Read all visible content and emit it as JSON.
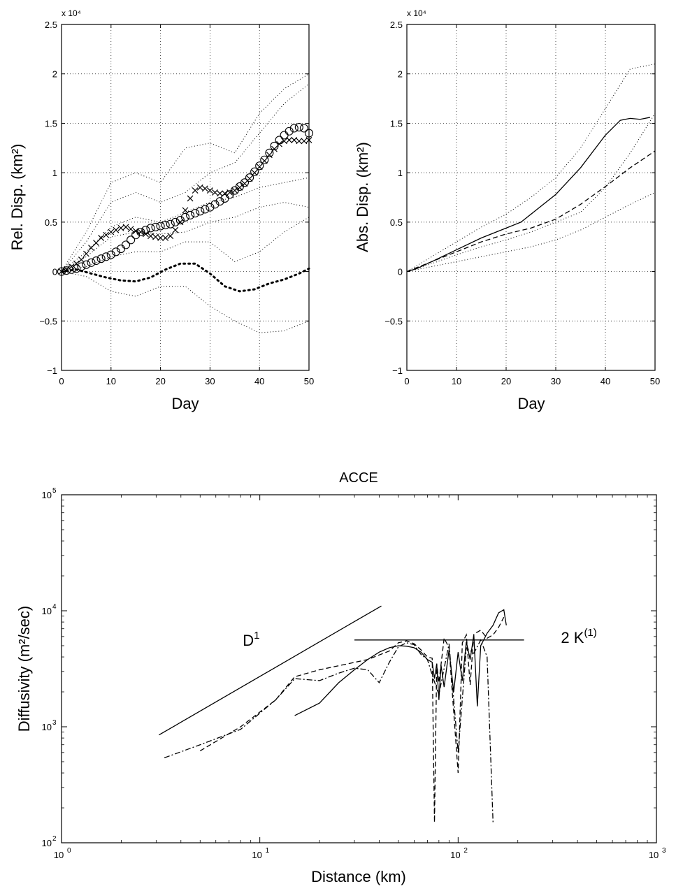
{
  "chart_data": [
    {
      "type": "line",
      "xlabel": "Day",
      "ylabel": "Rel. Disp. (km²)",
      "y_scale_label": "x 10⁴",
      "xlim": [
        0,
        50
      ],
      "ylim": [
        -1,
        2.5
      ],
      "x_ticks": [
        0,
        10,
        20,
        30,
        40,
        50
      ],
      "y_ticks": [
        -1,
        -0.5,
        0,
        0.5,
        1,
        1.5,
        2,
        2.5
      ],
      "y_tick_labels": [
        "−1",
        "−0.5",
        "0",
        "0.5",
        "1",
        "1.5",
        "2",
        "2.5"
      ],
      "grid": true,
      "series": [
        {
          "marker": "circle",
          "style": "circles",
          "x": [
            0,
            1,
            2,
            3,
            4,
            5,
            6,
            7,
            8,
            9,
            10,
            11,
            12,
            13,
            14,
            15,
            16,
            17,
            18,
            19,
            20,
            21,
            22,
            23,
            24,
            25,
            26,
            27,
            28,
            29,
            30,
            31,
            32,
            33,
            34,
            35,
            36,
            37,
            38,
            39,
            40,
            41,
            42,
            43,
            44,
            45,
            46,
            47,
            48,
            49,
            50
          ],
          "y": [
            0,
            0.01,
            0.02,
            0.03,
            0.05,
            0.07,
            0.09,
            0.11,
            0.13,
            0.15,
            0.17,
            0.2,
            0.23,
            0.27,
            0.32,
            0.37,
            0.4,
            0.42,
            0.44,
            0.45,
            0.46,
            0.47,
            0.48,
            0.5,
            0.52,
            0.55,
            0.57,
            0.59,
            0.61,
            0.63,
            0.65,
            0.68,
            0.71,
            0.74,
            0.78,
            0.82,
            0.86,
            0.9,
            0.95,
            1.01,
            1.07,
            1.13,
            1.2,
            1.27,
            1.33,
            1.38,
            1.42,
            1.45,
            1.46,
            1.45,
            1.4
          ]
        },
        {
          "marker": "x",
          "style": "crosses",
          "x": [
            0,
            1,
            2,
            3,
            4,
            5,
            6,
            7,
            8,
            9,
            10,
            11,
            12,
            13,
            14,
            15,
            16,
            17,
            18,
            19,
            20,
            21,
            22,
            23,
            24,
            25,
            26,
            27,
            28,
            29,
            30,
            31,
            32,
            33,
            34,
            35,
            36,
            37,
            38,
            39,
            40,
            41,
            42,
            43,
            44,
            45,
            46,
            47,
            48,
            49,
            50
          ],
          "y": [
            0,
            0.02,
            0.05,
            0.08,
            0.12,
            0.18,
            0.24,
            0.29,
            0.34,
            0.37,
            0.4,
            0.42,
            0.44,
            0.45,
            0.43,
            0.41,
            0.4,
            0.38,
            0.36,
            0.35,
            0.34,
            0.34,
            0.36,
            0.42,
            0.5,
            0.62,
            0.74,
            0.82,
            0.85,
            0.84,
            0.82,
            0.8,
            0.79,
            0.79,
            0.8,
            0.82,
            0.85,
            0.89,
            0.94,
            1,
            1.06,
            1.12,
            1.18,
            1.24,
            1.29,
            1.32,
            1.33,
            1.33,
            1.32,
            1.32,
            1.33
          ]
        },
        {
          "marker": "dot",
          "style": "bold-dots",
          "x": [
            0,
            3,
            6,
            9,
            12,
            15,
            18,
            21,
            24,
            27,
            30,
            33,
            36,
            39,
            42,
            45,
            48,
            50
          ],
          "y": [
            0,
            0.02,
            -0.02,
            -0.06,
            -0.09,
            -0.1,
            -0.06,
            0.02,
            0.08,
            0.08,
            -0.02,
            -0.15,
            -0.2,
            -0.18,
            -0.12,
            -0.08,
            -0.02,
            0.03
          ]
        },
        {
          "style": "dotted",
          "x": [
            0,
            5,
            10,
            15,
            20,
            25,
            30,
            35,
            40,
            45,
            50
          ],
          "y": [
            0,
            0.4,
            0.9,
            1.0,
            0.9,
            1.25,
            1.3,
            1.2,
            1.6,
            1.85,
            2.0
          ]
        },
        {
          "style": "dotted",
          "x": [
            0,
            5,
            10,
            15,
            20,
            25,
            30,
            35,
            40,
            45,
            50
          ],
          "y": [
            0,
            0.3,
            0.7,
            0.8,
            0.7,
            0.8,
            1.0,
            1.1,
            1.4,
            1.7,
            1.9
          ]
        },
        {
          "style": "dotted",
          "x": [
            0,
            5,
            10,
            15,
            20,
            25,
            30,
            35,
            40,
            45,
            50
          ],
          "y": [
            0,
            0.2,
            0.45,
            0.55,
            0.5,
            0.6,
            0.7,
            0.75,
            0.85,
            0.9,
            0.95
          ]
        },
        {
          "style": "dotted",
          "x": [
            0,
            5,
            10,
            15,
            20,
            25,
            30,
            35,
            40,
            45,
            50
          ],
          "y": [
            0,
            0.15,
            0.35,
            0.4,
            0.38,
            0.4,
            0.5,
            0.55,
            0.65,
            0.7,
            0.65
          ]
        },
        {
          "style": "dotted",
          "x": [
            0,
            5,
            10,
            15,
            20,
            25,
            30,
            35,
            40,
            45,
            50
          ],
          "y": [
            0,
            0.05,
            0.15,
            0.2,
            0.2,
            0.3,
            0.3,
            0.1,
            0.2,
            0.4,
            0.55
          ]
        },
        {
          "style": "dotted",
          "x": [
            0,
            5,
            10,
            15,
            20,
            25,
            30,
            35,
            40,
            45,
            50
          ],
          "y": [
            0,
            -0.05,
            -0.2,
            -0.25,
            -0.15,
            -0.15,
            -0.35,
            -0.5,
            -0.62,
            -0.6,
            -0.5
          ]
        }
      ]
    },
    {
      "type": "line",
      "xlabel": "Day",
      "ylabel": "Abs. Disp. (km²)",
      "y_scale_label": "x 10⁴",
      "xlim": [
        0,
        50
      ],
      "ylim": [
        -1,
        2.5
      ],
      "x_ticks": [
        0,
        10,
        20,
        30,
        40,
        50
      ],
      "y_ticks": [
        -1,
        -0.5,
        0,
        0.5,
        1,
        1.5,
        2,
        2.5
      ],
      "y_tick_labels": [
        "−1",
        "−0.5",
        "0",
        "0.5",
        "1",
        "1.5",
        "2",
        "2.5"
      ],
      "grid": true,
      "series": [
        {
          "style": "solid",
          "x": [
            0,
            2,
            5,
            10,
            15,
            20,
            23,
            26,
            30,
            35,
            40,
            43,
            45,
            47,
            49
          ],
          "y": [
            0,
            0.03,
            0.1,
            0.22,
            0.34,
            0.44,
            0.5,
            0.62,
            0.78,
            1.05,
            1.38,
            1.53,
            1.55,
            1.54,
            1.56
          ]
        },
        {
          "style": "dashed",
          "x": [
            0,
            5,
            10,
            15,
            20,
            25,
            30,
            35,
            40,
            45,
            50
          ],
          "y": [
            0,
            0.1,
            0.2,
            0.3,
            0.38,
            0.44,
            0.53,
            0.68,
            0.86,
            1.05,
            1.22
          ]
        },
        {
          "style": "dotted",
          "x": [
            0,
            5,
            10,
            15,
            20,
            25,
            30,
            35,
            40,
            45,
            50
          ],
          "y": [
            0,
            0.15,
            0.3,
            0.45,
            0.58,
            0.75,
            0.95,
            1.25,
            1.65,
            2.05,
            2.1
          ]
        },
        {
          "style": "dotted",
          "x": [
            0,
            5,
            10,
            15,
            20,
            25,
            30,
            35,
            40,
            45,
            50
          ],
          "y": [
            0,
            0.08,
            0.17,
            0.25,
            0.32,
            0.4,
            0.5,
            0.6,
            0.85,
            1.2,
            1.6
          ]
        },
        {
          "style": "dotted",
          "x": [
            0,
            5,
            10,
            15,
            20,
            25,
            30,
            35,
            40,
            45,
            50
          ],
          "y": [
            0,
            0.05,
            0.1,
            0.15,
            0.2,
            0.25,
            0.32,
            0.42,
            0.55,
            0.68,
            0.8
          ]
        }
      ]
    },
    {
      "type": "line",
      "title": "ACCE",
      "xlabel": "Distance (km)",
      "ylabel": "Diffusivity (m²/sec)",
      "x_scale": "log",
      "y_scale": "log",
      "xlim": [
        1,
        1000
      ],
      "ylim": [
        100,
        100000
      ],
      "x_ticks": [
        1,
        10,
        100,
        1000
      ],
      "y_ticks": [
        100,
        1000,
        10000,
        100000
      ],
      "tick_base": "10",
      "x_tick_exponents": [
        "0",
        "1",
        "2",
        "3"
      ],
      "y_tick_exponents": [
        "2",
        "3",
        "4",
        "5"
      ],
      "grid": false,
      "annotations": [
        {
          "text": "D",
          "sup": "1",
          "x": 8.2,
          "y": 5000
        },
        {
          "text": "2 K",
          "sup": "(1)",
          "x": 330,
          "y": 5300
        }
      ],
      "series": [
        {
          "name": "D¹ reference",
          "style": "solid",
          "x": [
            3.1,
            41
          ],
          "y": [
            850,
            11000
          ]
        },
        {
          "name": "2 K⁽¹⁾ reference",
          "style": "solid",
          "x": [
            30,
            215
          ],
          "y": [
            5600,
            5600
          ]
        },
        {
          "style": "solid",
          "x": [
            15,
            20,
            25,
            30,
            35,
            40,
            45,
            50,
            55,
            60,
            65,
            70,
            74,
            76,
            78,
            80,
            82,
            85,
            90,
            95,
            100,
            105,
            110,
            115,
            120,
            125,
            130,
            140,
            150,
            160,
            170,
            175
          ],
          "y": [
            1250,
            1600,
            2400,
            3100,
            3800,
            4400,
            4800,
            5000,
            4950,
            4800,
            4400,
            3800,
            3600,
            2600,
            3500,
            1700,
            3400,
            2200,
            4600,
            2000,
            4400,
            2500,
            5400,
            3800,
            6200,
            1500,
            5000,
            6400,
            7500,
            9600,
            10200,
            7500
          ]
        },
        {
          "style": "dashed",
          "x": [
            5,
            8,
            12,
            15,
            20,
            28,
            35,
            45,
            50,
            55,
            60,
            65,
            70,
            74,
            76,
            78,
            80,
            85,
            90,
            100,
            105,
            110,
            115,
            120,
            130,
            140,
            150,
            160,
            170
          ],
          "y": [
            620,
            1000,
            1700,
            2700,
            3100,
            3500,
            3800,
            4500,
            5300,
            5500,
            5200,
            4600,
            4000,
            3900,
            150,
            3500,
            2400,
            5800,
            4800,
            400,
            5300,
            6200,
            2300,
            6300,
            6800,
            5800,
            6200,
            7200,
            8800
          ]
        },
        {
          "style": "dash-dot",
          "x": [
            3.3,
            5,
            8,
            12,
            15,
            20,
            25,
            30,
            35,
            40,
            45,
            50,
            55,
            60,
            65,
            70,
            75,
            80,
            90,
            100,
            110,
            120,
            130,
            140,
            150
          ],
          "y": [
            540,
            700,
            950,
            1700,
            2600,
            2500,
            2900,
            3200,
            3100,
            2400,
            3600,
            4900,
            5300,
            5100,
            4200,
            3800,
            2600,
            1900,
            5200,
            600,
            4800,
            4300,
            5600,
            4000,
            150
          ]
        }
      ]
    }
  ]
}
